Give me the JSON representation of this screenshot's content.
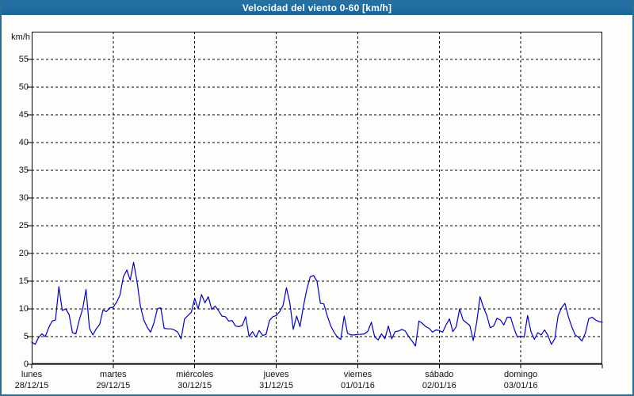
{
  "window": {
    "title": "Velocidad del viento 0-60 [km/h]"
  },
  "colors": {
    "titlebar": "#1f6ba3",
    "frame": "#2d6e96",
    "background": "#fdfdfc",
    "grid": "#000000",
    "axis": "#000000",
    "line": "#0000cc"
  },
  "chart_data": {
    "type": "line",
    "title": "Velocidad del viento 0-60 [km/h]",
    "xlabel": "",
    "ylabel": "km/h",
    "ylim": [
      0,
      60
    ],
    "ytick_step": 5,
    "yticks": [
      0,
      5,
      10,
      15,
      20,
      25,
      30,
      35,
      40,
      45,
      50,
      55
    ],
    "grid": "dashed",
    "legend": "none",
    "x_unit": "hours",
    "hours_per_day": 24,
    "days": [
      {
        "name": "lunes",
        "date": "28/12/15"
      },
      {
        "name": "martes",
        "date": "29/12/15"
      },
      {
        "name": "miércoles",
        "date": "30/12/15"
      },
      {
        "name": "jueves",
        "date": "31/12/15"
      },
      {
        "name": "viernes",
        "date": "01/01/16"
      },
      {
        "name": "sábado",
        "date": "02/01/16"
      },
      {
        "name": "domingo",
        "date": "03/01/16"
      }
    ],
    "series": [
      {
        "name": "Velocidad del viento",
        "color": "#0000cc",
        "sampling": "hourly",
        "values": [
          4.0,
          3.6,
          4.8,
          5.5,
          5.0,
          6.6,
          7.8,
          8.0,
          14.0,
          9.7,
          10.0,
          9.0,
          5.7,
          5.5,
          8.0,
          10.0,
          13.5,
          6.5,
          5.3,
          6.4,
          7.2,
          9.8,
          9.5,
          10.2,
          10.3,
          11.2,
          12.5,
          15.8,
          17.0,
          15.2,
          18.4,
          15.0,
          10.5,
          8.0,
          6.7,
          5.8,
          7.5,
          10.0,
          10.2,
          6.5,
          6.4,
          6.4,
          6.2,
          5.8,
          4.6,
          8.2,
          8.8,
          9.4,
          11.9,
          10.0,
          12.6,
          11.1,
          12.2,
          9.9,
          10.5,
          9.7,
          8.7,
          8.6,
          7.8,
          7.9,
          6.9,
          6.8,
          7.0,
          8.6,
          5.0,
          5.9,
          4.9,
          6.1,
          5.2,
          5.4,
          7.9,
          8.6,
          8.8,
          9.5,
          10.6,
          13.8,
          11.1,
          6.3,
          8.7,
          6.8,
          10.5,
          13.5,
          15.8,
          16.0,
          15.0,
          11.0,
          10.9,
          8.8,
          7.0,
          5.8,
          4.9,
          4.5,
          8.7,
          5.6,
          5.3,
          5.3,
          5.4,
          5.4,
          5.5,
          6.0,
          7.6,
          4.9,
          4.4,
          5.5,
          4.6,
          6.9,
          4.6,
          5.9,
          6.0,
          6.3,
          6.0,
          5.0,
          4.2,
          3.3,
          7.8,
          7.4,
          6.8,
          6.5,
          5.8,
          6.2,
          6.1,
          5.8,
          7.1,
          8.2,
          5.9,
          6.8,
          10.0,
          8.0,
          7.5,
          7.0,
          4.3,
          7.5,
          12.2,
          10.3,
          8.8,
          6.6,
          6.9,
          8.3,
          8.0,
          7.1,
          8.5,
          8.5,
          6.5,
          4.9,
          5.1,
          4.9,
          8.8,
          5.9,
          4.5,
          5.7,
          5.3,
          6.2,
          5.2,
          3.6,
          4.6,
          8.8,
          10.2,
          11.0,
          8.6,
          6.8,
          5.3,
          4.9,
          4.2,
          5.6,
          8.2,
          8.5,
          8.0,
          7.7,
          7.6
        ]
      }
    ]
  }
}
